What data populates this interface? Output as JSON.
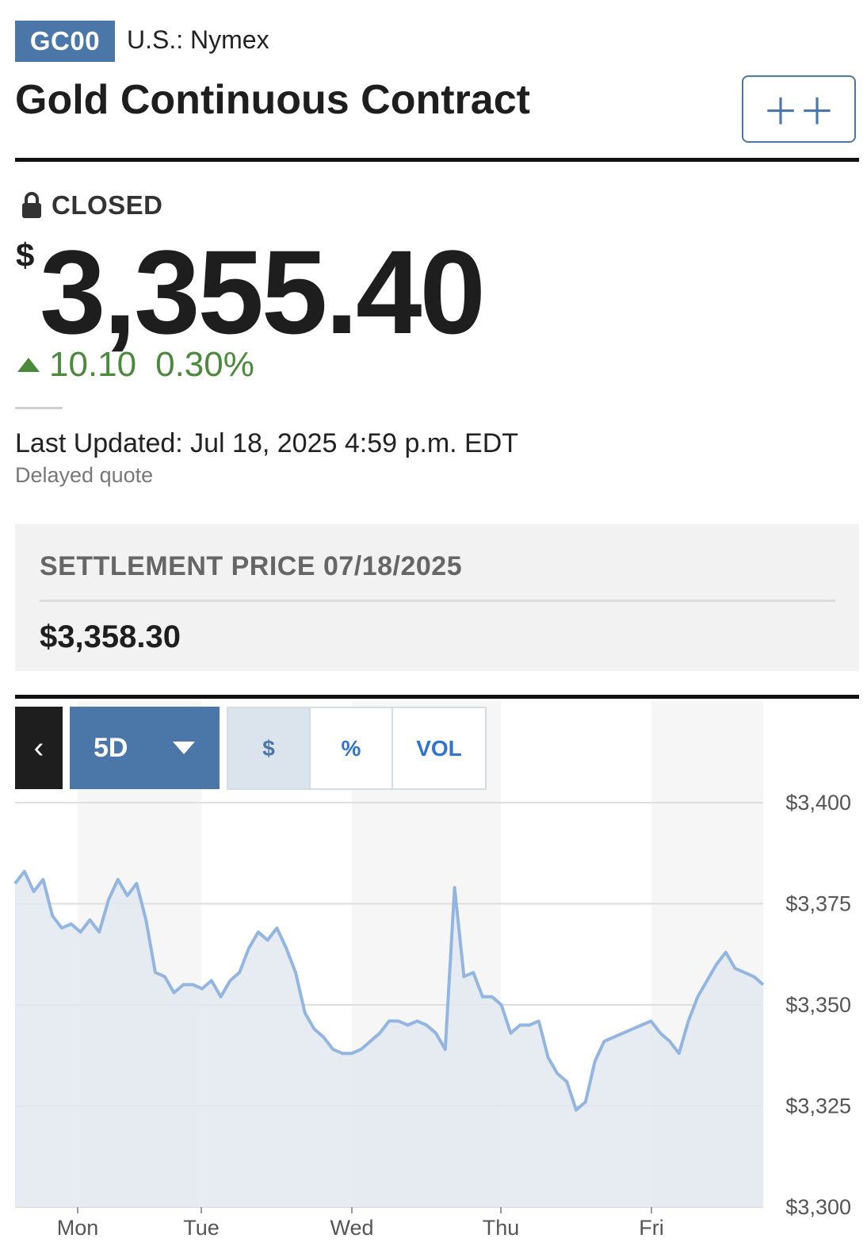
{
  "header": {
    "symbol": "GC00",
    "exchange": "U.S.: Nymex",
    "title": "Gold Continuous Contract",
    "watchlist_icon": "plus-plus-icon"
  },
  "quote": {
    "status": "CLOSED",
    "status_icon": "lock-icon",
    "currency_symbol": "$",
    "price": "3,355.40",
    "change": "10.10",
    "change_percent": "0.30%",
    "direction": "up",
    "last_updated": "Last Updated: Jul 18, 2025 4:59 p.m. EDT",
    "delayed_note": "Delayed quote"
  },
  "settlement": {
    "title": "SETTLEMENT PRICE 07/18/2025",
    "value": "$3,358.30"
  },
  "chart_controls": {
    "back_label": "‹",
    "range_label": "5D",
    "modes": [
      "$",
      "%",
      "VOL"
    ],
    "active_mode": "$"
  },
  "colors": {
    "brand": "#4a77a8",
    "up": "#4a8a3a",
    "line": "#92b6e0",
    "fill": "#e3e9f1"
  },
  "chart_data": {
    "type": "area",
    "title": "",
    "xlabel": "",
    "ylabel": "",
    "x_ticks": [
      "Mon",
      "Tue",
      "Wed",
      "Thu",
      "Fri"
    ],
    "y_ticks": [
      "$3,400",
      "$3,375",
      "$3,350",
      "$3,325",
      "$3,300"
    ],
    "ylim": [
      3300,
      3400
    ],
    "grid": true,
    "series": [
      {
        "values": [
          3380,
          3383,
          3378,
          3381,
          3372,
          3369,
          3370,
          3368,
          3371,
          3368,
          3376,
          3381,
          3377,
          3380,
          3371,
          3358,
          3357,
          3353,
          3355,
          3355,
          3354,
          3356,
          3352,
          3356,
          3358,
          3364,
          3368,
          3366,
          3369,
          3364,
          3358,
          3348,
          3344,
          3342,
          3339,
          3338,
          3338,
          3339,
          3341,
          3343,
          3346,
          3346,
          3345,
          3346,
          3345,
          3343,
          3339,
          3379,
          3357,
          3358,
          3352,
          3352,
          3350,
          3343,
          3345,
          3345,
          3346,
          3337,
          3333,
          3331,
          3324,
          3326,
          3336,
          3341,
          3342,
          3343,
          3344,
          3345,
          3346,
          3343,
          3341,
          3338,
          3346,
          3352,
          3356,
          3360,
          3363,
          3359,
          3358,
          3357,
          3355
        ]
      }
    ]
  }
}
